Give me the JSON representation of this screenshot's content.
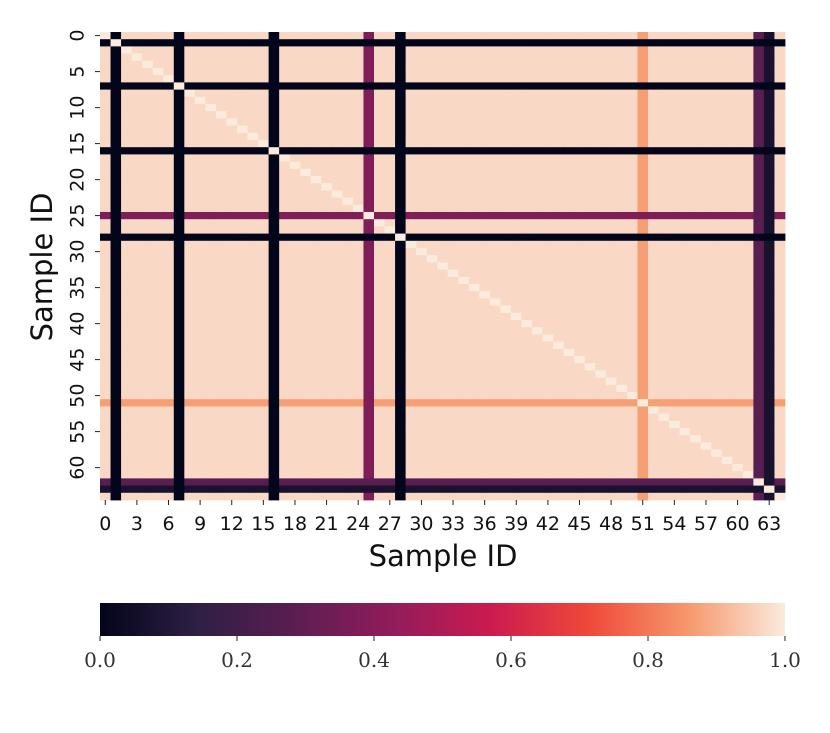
{
  "chart_data": {
    "type": "heatmap",
    "title": "",
    "xlabel": "Sample ID",
    "ylabel": "Sample ID",
    "n": 65,
    "x_tick_labels": [
      "0",
      "3",
      "6",
      "9",
      "12",
      "15",
      "18",
      "21",
      "24",
      "27",
      "30",
      "33",
      "36",
      "39",
      "42",
      "45",
      "48",
      "51",
      "54",
      "57",
      "60",
      "63"
    ],
    "y_tick_labels": [
      "0",
      "5",
      "10",
      "15",
      "20",
      "25",
      "30",
      "35",
      "40",
      "45",
      "50",
      "55",
      "60"
    ],
    "colormap": "rocket",
    "colormap_stops": [
      "#03051A",
      "#2E1F45",
      "#5B1E51",
      "#921C5B",
      "#CB1B4F",
      "#EF4939",
      "#F6976B",
      "#FAEBDD"
    ],
    "colorbar": {
      "min": 0.0,
      "max": 1.0,
      "orientation": "horizontal",
      "placement": "bottom",
      "ticks": [
        "0.0",
        "0.2",
        "0.4",
        "0.6",
        "0.8",
        "1.0"
      ]
    },
    "default_similarity": 0.97,
    "anomalous_samples": [
      {
        "id": 1,
        "value": 0.0
      },
      {
        "id": 7,
        "value": 0.0
      },
      {
        "id": 16,
        "value": 0.0
      },
      {
        "id": 25,
        "value": 0.38
      },
      {
        "id": 28,
        "value": 0.0
      },
      {
        "id": 51,
        "value": 0.87
      },
      {
        "id": 62,
        "value": 0.28
      },
      {
        "id": 63,
        "value": 0.07
      }
    ],
    "diagonal_value": 1.0
  }
}
